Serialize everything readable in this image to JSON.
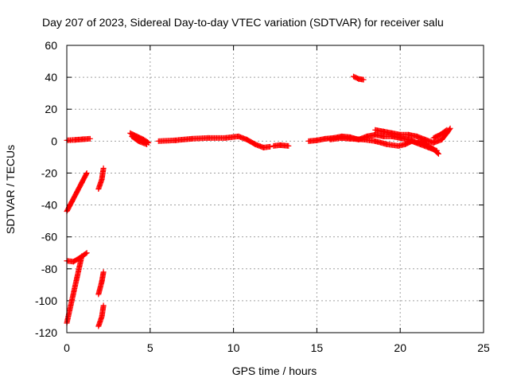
{
  "chart_data": {
    "type": "scatter",
    "title": "Day 207 of 2023, Sidereal Day-to-day VTEC variation (SDTVAR) for receiver salu",
    "xlabel": "GPS time / hours",
    "ylabel": "SDTVAR / TECUs",
    "xlim": [
      0,
      25
    ],
    "ylim": [
      -120,
      60
    ],
    "xticks": [
      "0",
      "5",
      "10",
      "15",
      "20",
      "25"
    ],
    "yticks": [
      "-120",
      "-100",
      "-80",
      "-60",
      "-40",
      "-20",
      "0",
      "20",
      "40",
      "60"
    ],
    "grid": true,
    "marker": "+",
    "color": "#ff0000",
    "series": [
      {
        "segments": [
          [
            [
              0.0,
              0.5
            ],
            [
              0.5,
              0.8
            ],
            [
              1.0,
              1.2
            ],
            [
              1.4,
              1.5
            ]
          ],
          [
            [
              0.0,
              -44
            ],
            [
              0.3,
              -38
            ],
            [
              0.6,
              -32
            ],
            [
              0.9,
              -26
            ],
            [
              1.2,
              -20
            ]
          ],
          [
            [
              0.0,
              -75
            ],
            [
              0.4,
              -75.5
            ],
            [
              0.8,
              -73
            ],
            [
              1.2,
              -70
            ]
          ],
          [
            [
              0.0,
              -114
            ],
            [
              0.3,
              -100
            ],
            [
              0.6,
              -86
            ],
            [
              0.9,
              -72
            ]
          ],
          [
            [
              1.9,
              -30
            ],
            [
              2.1,
              -24
            ],
            [
              2.2,
              -17
            ]
          ],
          [
            [
              1.9,
              -96
            ],
            [
              2.1,
              -88
            ],
            [
              2.2,
              -82
            ]
          ],
          [
            [
              1.9,
              -116
            ],
            [
              2.1,
              -110
            ],
            [
              2.2,
              -103
            ]
          ],
          [
            [
              3.8,
              5
            ],
            [
              4.2,
              3
            ],
            [
              4.6,
              1
            ],
            [
              4.9,
              -1
            ]
          ],
          [
            [
              3.9,
              3
            ],
            [
              4.3,
              0
            ],
            [
              4.8,
              -2
            ]
          ],
          [
            [
              5.5,
              0
            ],
            [
              6.5,
              0.5
            ],
            [
              7.5,
              1.5
            ],
            [
              8.5,
              2
            ],
            [
              9.5,
              2
            ],
            [
              10.3,
              3
            ],
            [
              10.8,
              1
            ],
            [
              11.3,
              -2
            ],
            [
              11.8,
              -4
            ],
            [
              12.2,
              -3.5
            ]
          ],
          [
            [
              12.4,
              -3
            ],
            [
              12.8,
              -2.5
            ],
            [
              13.3,
              -3
            ]
          ],
          [
            [
              14.5,
              0
            ],
            [
              15.0,
              0.5
            ],
            [
              15.5,
              1.5
            ],
            [
              16.0,
              2
            ],
            [
              16.5,
              3
            ],
            [
              17.0,
              2.5
            ],
            [
              17.5,
              1
            ],
            [
              18.0,
              3
            ],
            [
              18.5,
              4
            ]
          ],
          [
            [
              17.2,
              40.5
            ],
            [
              17.5,
              39
            ],
            [
              17.8,
              38.5
            ]
          ],
          [
            [
              15.8,
              1
            ],
            [
              16.5,
              2
            ],
            [
              17.0,
              1.5
            ],
            [
              17.8,
              1
            ],
            [
              18.5,
              0
            ],
            [
              19.2,
              -2
            ],
            [
              19.9,
              -3
            ],
            [
              20.3,
              -2
            ],
            [
              20.7,
              0
            ],
            [
              21.2,
              -2
            ],
            [
              21.7,
              -4
            ],
            [
              22.2,
              -6
            ]
          ],
          [
            [
              18.5,
              7
            ],
            [
              19.0,
              6
            ],
            [
              19.5,
              5
            ],
            [
              20.0,
              4
            ],
            [
              20.5,
              4
            ],
            [
              21.0,
              3
            ],
            [
              21.5,
              1
            ],
            [
              22.0,
              -1
            ],
            [
              22.5,
              1
            ],
            [
              22.8,
              5
            ],
            [
              23.0,
              8
            ]
          ],
          [
            [
              18.5,
              4
            ],
            [
              19.0,
              3
            ],
            [
              19.5,
              3
            ],
            [
              20.0,
              2
            ],
            [
              20.5,
              1
            ],
            [
              21.0,
              -1
            ],
            [
              21.3,
              0
            ],
            [
              21.6,
              -2
            ]
          ],
          [
            [
              21.7,
              -3
            ],
            [
              22.0,
              -5
            ],
            [
              22.3,
              -8
            ]
          ],
          [
            [
              22.0,
              2
            ],
            [
              22.4,
              4
            ],
            [
              22.8,
              7
            ]
          ]
        ]
      }
    ]
  }
}
